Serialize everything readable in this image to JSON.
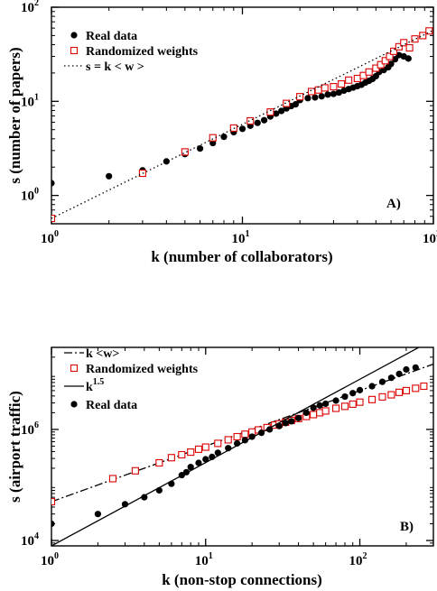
{
  "chart_data": [
    {
      "type": "scatter",
      "panel_label": "A)",
      "xlabel": "k (number of collaborators)",
      "ylabel": "s (number of papers)",
      "xscale": "log",
      "yscale": "log",
      "xlim": [
        1,
        100
      ],
      "ylim": [
        0.5,
        100
      ],
      "xticks": [
        {
          "base": "10",
          "exp": "0",
          "value": 1
        },
        {
          "base": "10",
          "exp": "1",
          "value": 10
        },
        {
          "base": "10",
          "exp": "2",
          "value": 100
        }
      ],
      "yticks": [
        {
          "base": "10",
          "exp": "0",
          "value": 1
        },
        {
          "base": "10",
          "exp": "1",
          "value": 10
        },
        {
          "base": "10",
          "exp": "2",
          "value": 100
        }
      ],
      "legend_position": "top-left",
      "series": [
        {
          "name": "Real data",
          "marker": "filled-circle",
          "color": "#000000",
          "x": [
            1,
            2,
            3,
            4,
            5,
            6,
            7,
            8,
            9,
            10,
            11,
            12,
            13,
            14,
            15,
            16,
            17,
            18,
            19,
            20,
            22,
            24,
            26,
            28,
            30,
            32,
            34,
            36,
            38,
            40,
            42,
            44,
            46,
            48,
            50,
            52,
            55,
            58,
            60,
            63,
            66,
            70,
            74
          ],
          "y": [
            1.35,
            1.6,
            1.85,
            2.3,
            2.75,
            3.15,
            3.6,
            4.2,
            4.7,
            5.1,
            5.5,
            5.9,
            6.3,
            6.9,
            7.4,
            7.9,
            8.4,
            8.9,
            9.3,
            10.3,
            10.8,
            11.0,
            11.3,
            11.8,
            12.0,
            12.4,
            13.0,
            13.5,
            14.0,
            14.5,
            15.0,
            15.8,
            16.5,
            17.3,
            18.5,
            20.5,
            21.5,
            23.0,
            25.0,
            28.0,
            31.0,
            30.0,
            28.5
          ]
        },
        {
          "name": "Randomized weights",
          "marker": "open-square",
          "color": "#dd0000",
          "x": [
            1,
            3,
            5,
            7,
            9,
            11,
            14,
            17,
            20,
            23,
            25,
            27,
            30,
            33,
            36,
            40,
            43,
            46,
            50,
            53,
            56,
            59,
            62,
            66,
            70,
            75,
            80,
            88,
            95
          ],
          "y": [
            0.57,
            1.72,
            2.9,
            4.1,
            5.2,
            6.2,
            7.7,
            9.5,
            11.2,
            12.7,
            13.2,
            13.9,
            14.3,
            15.3,
            16.8,
            17.5,
            18.8,
            20.5,
            22.5,
            24.5,
            27.0,
            30.0,
            34.0,
            38.0,
            42.0,
            37.0,
            46.0,
            50.0,
            56.0
          ]
        },
        {
          "name": "s = k  < w >",
          "style": "dotted",
          "color": "#000000",
          "slope": 1,
          "intercept_value": 0.57
        }
      ]
    },
    {
      "type": "scatter",
      "panel_label": "B)",
      "xlabel": "k (non-stop connections)",
      "ylabel": "s (airport traffic)",
      "xscale": "log",
      "yscale": "log",
      "xlim": [
        1,
        300
      ],
      "ylim": [
        8000,
        30000000
      ],
      "xticks": [
        {
          "base": "10",
          "exp": "0",
          "value": 1
        },
        {
          "base": "10",
          "exp": "1",
          "value": 10
        },
        {
          "base": "10",
          "exp": "2",
          "value": 100
        }
      ],
      "yticks": [
        {
          "base": "10",
          "exp": "4",
          "value": 10000
        },
        {
          "base": "10",
          "exp": "6",
          "value": 1000000
        }
      ],
      "legend_position": "top-left",
      "series": [
        {
          "name": "k <w>",
          "style": "dash-dot",
          "color": "#000000",
          "slope": 1,
          "intercept_value": 50000
        },
        {
          "name": "Randomized weights",
          "marker": "open-square",
          "color": "#dd0000",
          "x": [
            1,
            2.5,
            3.5,
            5,
            6,
            7,
            8,
            9,
            10,
            12,
            14,
            16,
            18,
            20,
            22,
            25,
            28,
            30,
            33,
            36,
            40,
            45,
            50,
            55,
            60,
            70,
            80,
            90,
            100,
            120,
            140,
            160,
            180,
            200,
            230,
            260
          ],
          "y": [
            50000,
            130000,
            180000,
            250000,
            310000,
            350000,
            390000,
            440000,
            480000,
            560000,
            650000,
            740000,
            820000,
            900000,
            980000,
            1080000,
            1200000,
            1260000,
            1350000,
            1450000,
            1570000,
            1710000,
            1850000,
            2000000,
            2150000,
            2400000,
            2600000,
            2850000,
            3100000,
            3450000,
            3850000,
            4200000,
            4650000,
            5000000,
            5500000,
            6000000
          ]
        },
        {
          "name": "k<sup>1.5</sup>",
          "label_base": "k",
          "label_exp": "1.5",
          "style": "solid",
          "color": "#000000",
          "slope": 1.5,
          "intercept_value": 8000
        },
        {
          "name": "Real data",
          "marker": "filled-circle",
          "color": "#000000",
          "x": [
            1,
            2,
            3,
            4,
            5,
            6,
            7,
            7.5,
            8,
            9,
            10,
            11,
            12,
            14,
            16,
            18,
            20,
            23,
            26,
            30,
            33,
            36,
            40,
            45,
            50,
            55,
            60,
            70,
            80,
            90,
            100,
            120,
            140,
            160,
            180,
            200,
            230
          ],
          "y": [
            20000,
            30000,
            45000,
            60000,
            80000,
            105000,
            150000,
            170000,
            210000,
            250000,
            290000,
            320000,
            380000,
            460000,
            560000,
            640000,
            740000,
            870000,
            1000000,
            1150000,
            1300000,
            1400000,
            1600000,
            2000000,
            2450000,
            2700000,
            2900000,
            3300000,
            3900000,
            4500000,
            5100000,
            6000000,
            7200000,
            8500000,
            10000000,
            12000000,
            13000000
          ]
        }
      ]
    }
  ]
}
